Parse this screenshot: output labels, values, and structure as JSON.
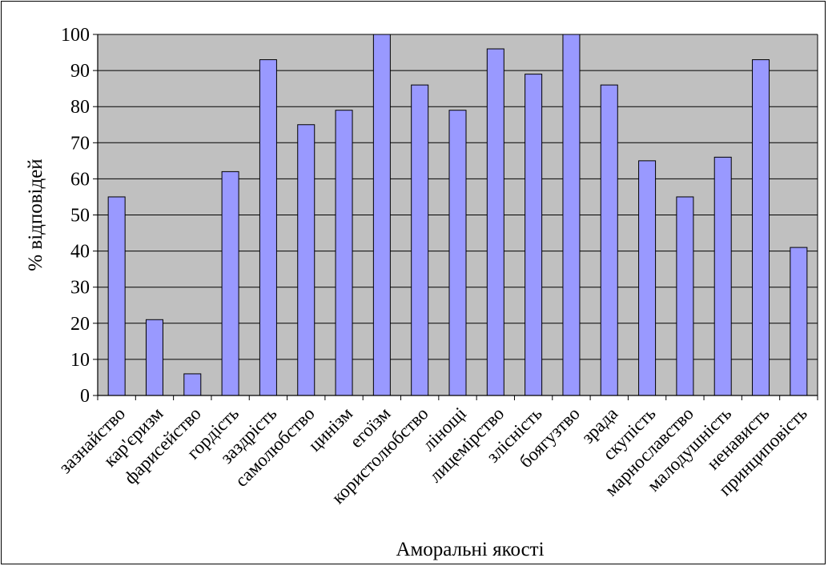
{
  "chart_data": {
    "type": "bar",
    "title": "",
    "xlabel": "Аморальні якості",
    "ylabel": "% відповідей",
    "ylim": [
      0,
      100
    ],
    "yticks": [
      0,
      10,
      20,
      30,
      40,
      50,
      60,
      70,
      80,
      90,
      100
    ],
    "grid": true,
    "categories": [
      "зазнайство",
      "кар'єризм",
      "фарисейство",
      "гордість",
      "заздрість",
      "самолюбство",
      "цинізм",
      "егоїзм",
      "користолюбство",
      "лінощі",
      "лицемірство",
      "злісність",
      "боягузтво",
      "зрада",
      "скупість",
      "марнославство",
      "малодушність",
      "ненависть",
      "принциповість"
    ],
    "values": [
      55,
      21,
      6,
      62,
      93,
      75,
      79,
      100,
      86,
      79,
      96,
      89,
      100,
      86,
      65,
      55,
      66,
      93,
      41
    ],
    "colors": {
      "bar_fill": "#9999ff",
      "bar_stroke": "#000000",
      "plot_bg": "#c0c0c0",
      "grid": "#000000"
    }
  }
}
